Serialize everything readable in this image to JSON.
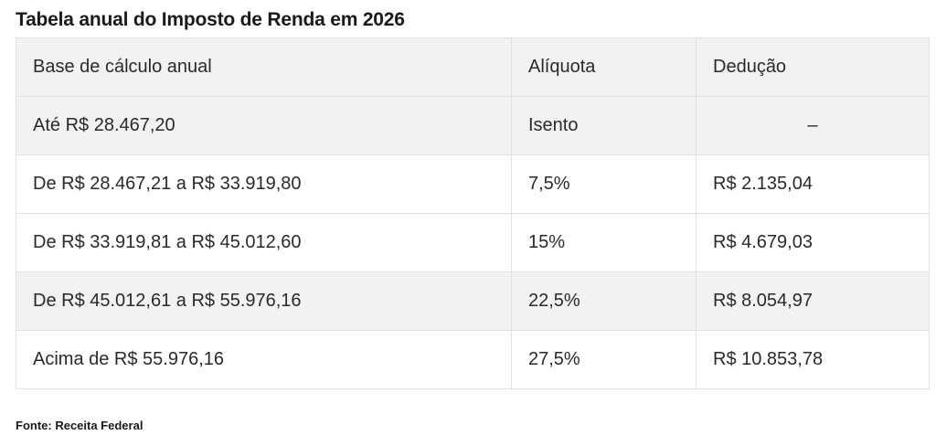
{
  "title": "Tabela anual do Imposto de Renda em 2026",
  "table": {
    "headers": [
      "Base de cálculo anual",
      "Alíquota",
      "Dedução"
    ],
    "rows": [
      [
        "Até R$ 28.467,20",
        "Isento",
        "–"
      ],
      [
        "De R$ 28.467,21 a R$ 33.919,80",
        "7,5%",
        "R$ 2.135,04"
      ],
      [
        "De R$ 33.919,81 a R$ 45.012,60",
        "15%",
        "R$ 4.679,03"
      ],
      [
        "De R$ 45.012,61 a R$ 55.976,16",
        "22,5%",
        "R$ 8.054,97"
      ],
      [
        "Acima de R$ 55.976,16",
        "27,5%",
        "R$ 10.853,78"
      ]
    ]
  },
  "source": "Fonte: Receita Federal"
}
